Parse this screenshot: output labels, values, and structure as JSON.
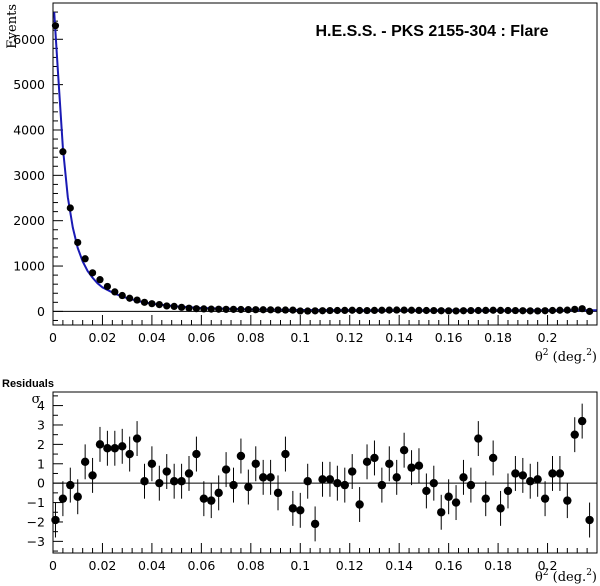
{
  "chart_data": [
    {
      "type": "scatter",
      "title": "H.E.S.S. - PKS 2155-304 : Flare",
      "ylabel": "Events",
      "xlabel_main": "θ",
      "xlabel_sup": "2",
      "xlabel_paren": " (deg.",
      "xlabel_paren_sup": "2",
      "xlabel_close": ")",
      "xlim": [
        0,
        0.22
      ],
      "ylim": [
        -300,
        6800
      ],
      "x_ticks": [
        0,
        0.02,
        0.04,
        0.06,
        0.08,
        0.1,
        0.12,
        0.14,
        0.16,
        0.18,
        0.2
      ],
      "x_tick_labels": [
        "0",
        "0.02",
        "0.04",
        "0.06",
        "0.08",
        "0.1",
        "0.12",
        "0.14",
        "0.16",
        "0.18",
        "0.2"
      ],
      "y_ticks": [
        0,
        1000,
        2000,
        3000,
        4000,
        5000,
        6000
      ],
      "y_tick_labels": [
        "0",
        "1000",
        "2000",
        "3000",
        "4000",
        "5000",
        "6000"
      ],
      "series": [
        {
          "x": [
            0.001,
            0.004,
            0.007,
            0.01,
            0.013,
            0.016,
            0.019,
            0.022,
            0.025,
            0.028,
            0.031,
            0.034,
            0.037,
            0.04,
            0.043,
            0.046,
            0.049,
            0.052,
            0.055,
            0.058,
            0.061,
            0.064,
            0.067,
            0.07,
            0.073,
            0.076,
            0.079,
            0.082,
            0.085,
            0.088,
            0.091,
            0.094,
            0.097,
            0.1,
            0.103,
            0.106,
            0.109,
            0.112,
            0.115,
            0.118,
            0.121,
            0.124,
            0.127,
            0.13,
            0.133,
            0.136,
            0.139,
            0.142,
            0.145,
            0.148,
            0.151,
            0.154,
            0.157,
            0.16,
            0.163,
            0.166,
            0.169,
            0.172,
            0.175,
            0.178,
            0.181,
            0.184,
            0.187,
            0.19,
            0.193,
            0.196,
            0.199,
            0.202,
            0.205,
            0.208,
            0.211,
            0.214,
            0.217
          ],
          "y": [
            6300,
            3520,
            2280,
            1520,
            1160,
            850,
            700,
            550,
            430,
            350,
            290,
            250,
            200,
            170,
            150,
            120,
            110,
            90,
            70,
            60,
            55,
            50,
            48,
            45,
            45,
            42,
            40,
            38,
            36,
            35,
            32,
            30,
            28,
            10,
            8,
            12,
            15,
            18,
            20,
            22,
            25,
            20,
            18,
            22,
            25,
            28,
            30,
            28,
            25,
            22,
            20,
            18,
            15,
            12,
            10,
            15,
            18,
            20,
            22,
            25,
            22,
            20,
            18,
            15,
            12,
            10,
            15,
            20,
            25,
            28,
            45,
            60,
            0
          ]
        }
      ],
      "fit_curve": {
        "name": "fit",
        "color": "#1a1ab4",
        "x": [
          0.0005,
          0.002,
          0.004,
          0.006,
          0.008,
          0.01,
          0.012,
          0.014,
          0.016,
          0.018,
          0.02,
          0.025,
          0.03,
          0.035,
          0.04,
          0.05,
          0.06,
          0.08,
          0.1,
          0.15,
          0.2,
          0.22
        ],
        "y": [
          6600,
          5300,
          3600,
          2520,
          1850,
          1400,
          1100,
          890,
          740,
          620,
          530,
          390,
          290,
          220,
          170,
          110,
          75,
          45,
          30,
          25,
          25,
          25
        ]
      }
    },
    {
      "type": "scatter",
      "title": "Residuals",
      "ylabel": "σ",
      "xlabel_main": "θ",
      "xlabel_sup": "2",
      "xlabel_paren": " (deg.",
      "xlabel_paren_sup": "2",
      "xlabel_close": ")",
      "xlim": [
        0,
        0.22
      ],
      "ylim": [
        -3.6,
        4.7
      ],
      "x_ticks": [
        0,
        0.02,
        0.04,
        0.06,
        0.08,
        0.1,
        0.12,
        0.14,
        0.16,
        0.18,
        0.2
      ],
      "x_tick_labels": [
        "0",
        "0.02",
        "0.04",
        "0.06",
        "0.08",
        "0.1",
        "0.12",
        "0.14",
        "0.16",
        "0.18",
        "0.2"
      ],
      "y_ticks": [
        -3,
        -2,
        -1,
        0,
        1,
        2,
        3,
        4
      ],
      "y_tick_labels": [
        "−3",
        "−2",
        "−1",
        "0",
        "1",
        "2",
        "3",
        "4"
      ],
      "series": [
        {
          "x": [
            0.001,
            0.004,
            0.007,
            0.01,
            0.013,
            0.016,
            0.019,
            0.022,
            0.025,
            0.028,
            0.031,
            0.034,
            0.037,
            0.04,
            0.043,
            0.046,
            0.049,
            0.052,
            0.055,
            0.058,
            0.061,
            0.064,
            0.067,
            0.07,
            0.073,
            0.076,
            0.079,
            0.082,
            0.085,
            0.088,
            0.091,
            0.094,
            0.097,
            0.1,
            0.103,
            0.106,
            0.109,
            0.112,
            0.115,
            0.118,
            0.121,
            0.124,
            0.127,
            0.13,
            0.133,
            0.136,
            0.139,
            0.142,
            0.145,
            0.148,
            0.151,
            0.154,
            0.157,
            0.16,
            0.163,
            0.166,
            0.169,
            0.172,
            0.175,
            0.178,
            0.181,
            0.184,
            0.187,
            0.19,
            0.193,
            0.196,
            0.199,
            0.202,
            0.205,
            0.208,
            0.211,
            0.214,
            0.217
          ],
          "y": [
            -1.9,
            -0.8,
            -0.1,
            -0.7,
            1.1,
            0.4,
            2.0,
            1.8,
            1.8,
            1.9,
            1.5,
            2.3,
            0.1,
            1.0,
            0.0,
            0.6,
            0.1,
            0.1,
            0.5,
            1.5,
            -0.8,
            -0.9,
            -0.5,
            0.7,
            -0.1,
            1.4,
            -0.2,
            1.0,
            0.3,
            0.3,
            -0.5,
            1.5,
            -1.3,
            -1.4,
            0.1,
            -2.1,
            0.2,
            0.2,
            0.0,
            -0.1,
            0.6,
            -1.1,
            1.1,
            1.3,
            -0.1,
            1.0,
            0.3,
            1.7,
            0.8,
            0.9,
            -0.4,
            0.0,
            -1.5,
            -0.7,
            -1.0,
            0.3,
            -0.1,
            2.3,
            -0.8,
            1.3,
            -1.3,
            -0.4,
            0.5,
            0.4,
            0.1,
            0.2,
            -0.8,
            0.5,
            0.5,
            -0.9,
            2.5,
            3.2,
            -1.9
          ],
          "err": [
            0.9,
            0.9,
            0.9,
            0.9,
            0.9,
            0.9,
            0.9,
            0.9,
            0.9,
            0.9,
            0.9,
            0.9,
            0.9,
            0.9,
            0.9,
            0.9,
            0.9,
            0.9,
            0.9,
            0.9,
            0.9,
            0.9,
            0.9,
            0.9,
            0.9,
            0.9,
            0.9,
            0.9,
            0.9,
            0.9,
            0.9,
            0.9,
            0.9,
            0.9,
            0.9,
            0.9,
            0.9,
            0.9,
            0.9,
            0.9,
            0.9,
            0.9,
            0.9,
            0.9,
            0.9,
            0.9,
            0.9,
            0.9,
            0.9,
            0.9,
            0.9,
            0.9,
            0.9,
            0.9,
            0.9,
            0.9,
            0.9,
            0.9,
            0.9,
            0.9,
            0.9,
            0.9,
            0.9,
            0.9,
            0.9,
            0.9,
            0.9,
            0.9,
            0.9,
            0.9,
            0.9,
            0.9,
            0.9
          ]
        }
      ]
    }
  ]
}
